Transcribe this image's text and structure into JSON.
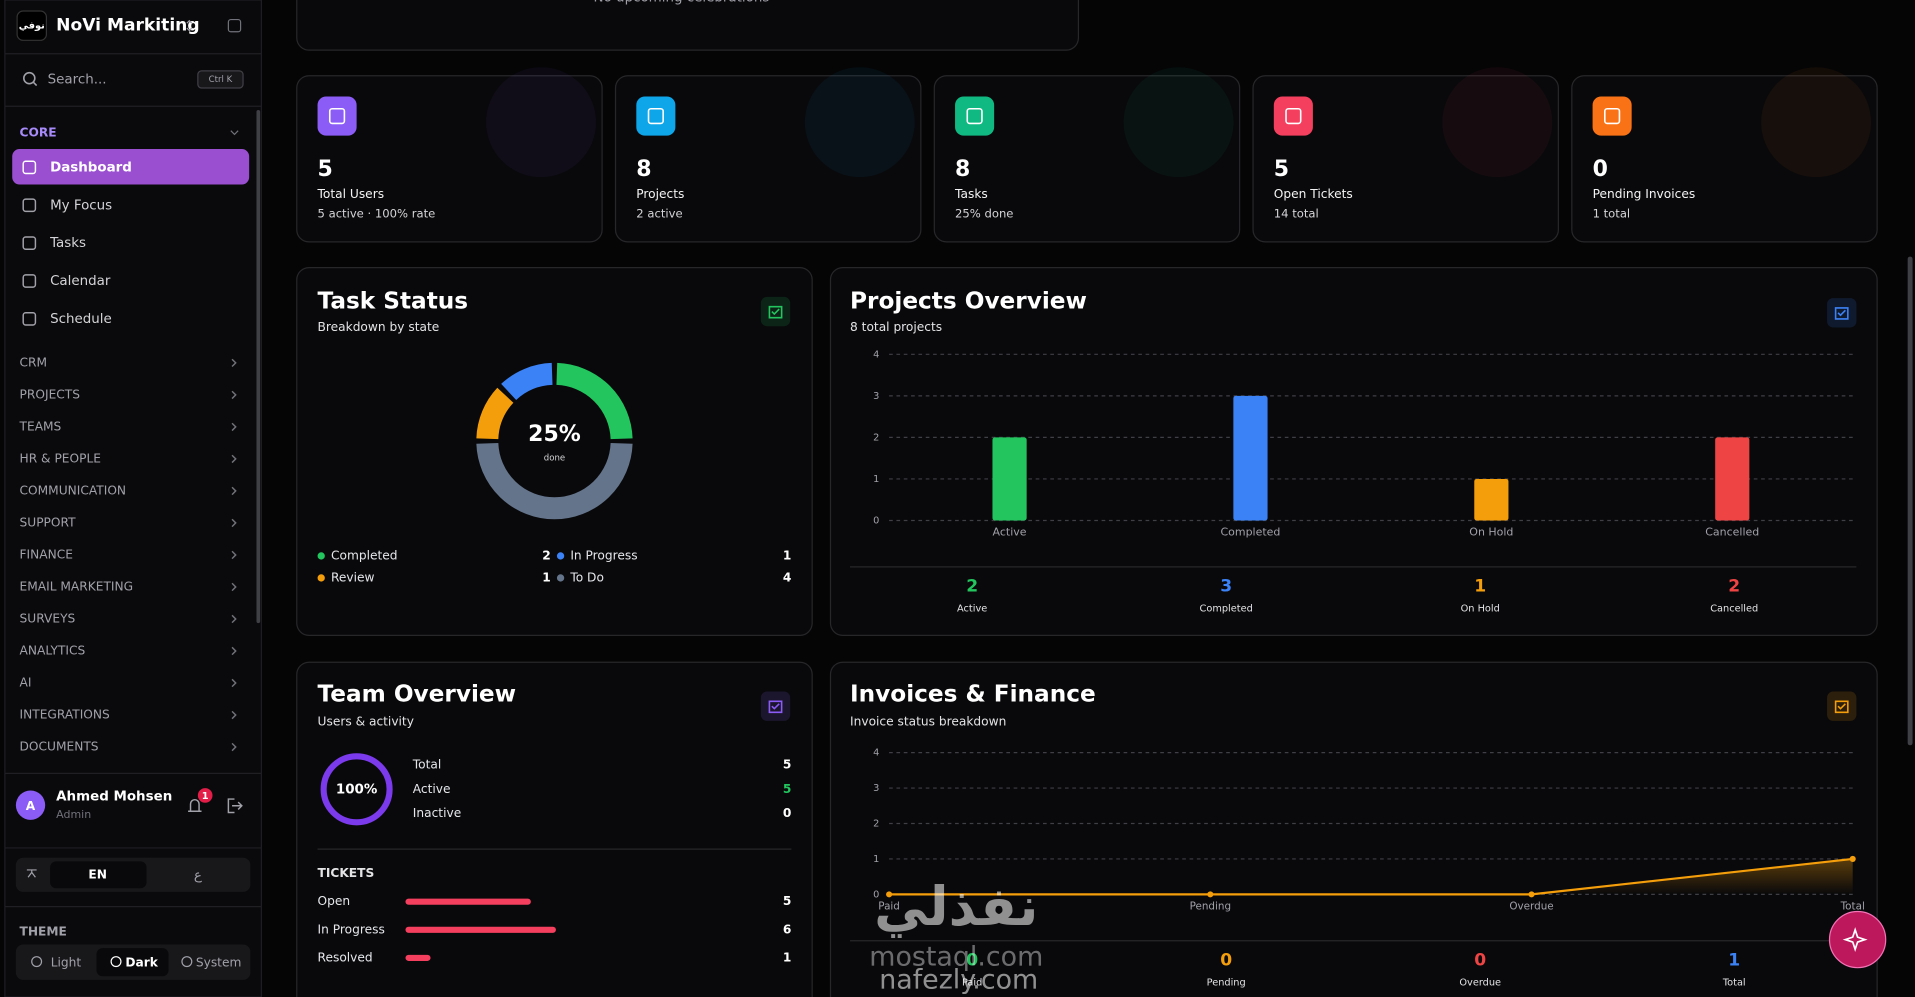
{
  "sidebar": {
    "logo": "نوفي",
    "brand": "NoVi Markiting",
    "search": {
      "placeholder": "Search...",
      "shortcut": "Ctrl K"
    },
    "section": "CORE",
    "nav": [
      "Dashboard",
      "My Focus",
      "Tasks",
      "Calendar",
      "Schedule"
    ],
    "groups": [
      "CRM",
      "PROJECTS",
      "TEAMS",
      "HR & PEOPLE",
      "COMMUNICATION",
      "SUPPORT",
      "FINANCE",
      "EMAIL MARKETING",
      "SURVEYS",
      "ANALYTICS",
      "AI",
      "INTEGRATIONS",
      "DOCUMENTS"
    ],
    "user": {
      "initial": "A",
      "name": "Ahmed Mohsen",
      "role": "Admin",
      "notifications": 1
    },
    "language": {
      "options": [
        "EN",
        "ع"
      ]
    },
    "theme": {
      "label": "THEME",
      "options": [
        "Light",
        "Dark",
        "System"
      ]
    }
  },
  "celebrations": "No upcoming celebrations",
  "stats": [
    {
      "value": 5,
      "label": "Total Users",
      "detail": "5 active · 100% rate",
      "color": "#8b5cf6"
    },
    {
      "value": 8,
      "label": "Projects",
      "detail": "2 active",
      "color": "#0ea5e9"
    },
    {
      "value": 8,
      "label": "Tasks",
      "detail": "25% done",
      "color": "#10b981"
    },
    {
      "value": 5,
      "label": "Open Tickets",
      "detail": "14 total",
      "color": "#f43f5e"
    },
    {
      "value": 0,
      "label": "Pending Invoices",
      "detail": "1 total",
      "color": "#f97316"
    }
  ],
  "task_status": {
    "type": "donut",
    "title": "Task Status",
    "subtitle": "Breakdown by state",
    "center_label": "25%",
    "center_caption": "done",
    "series": [
      {
        "name": "Completed",
        "value": 2,
        "color": "#22c55e"
      },
      {
        "name": "In Progress",
        "value": 1,
        "color": "#3b82f6"
      },
      {
        "name": "Review",
        "value": 1,
        "color": "#f59e0b"
      },
      {
        "name": "To Do",
        "value": 4,
        "color": "#64748b"
      }
    ]
  },
  "projects_overview": {
    "type": "bar",
    "title": "Projects Overview",
    "subtitle": "8 total projects",
    "categories": [
      "Active",
      "Completed",
      "On Hold",
      "Cancelled"
    ],
    "values": [
      2,
      3,
      1,
      2
    ],
    "colors": [
      "#22c55e",
      "#3b82f6",
      "#f59e0b",
      "#ef4444"
    ],
    "ylim": [
      0,
      4
    ],
    "yticks": [
      0,
      1,
      2,
      3,
      4
    ],
    "grid": true
  },
  "team_overview": {
    "title": "Team Overview",
    "subtitle": "Users & activity",
    "ring_label": "100%",
    "rows": [
      {
        "name": "Total",
        "value": 5
      },
      {
        "name": "Active",
        "value": 5,
        "color": "#22c55e"
      },
      {
        "name": "Inactive",
        "value": 0
      }
    ],
    "tickets": {
      "type": "hbar",
      "title": "TICKETS",
      "categories": [
        "Open",
        "In Progress",
        "Resolved"
      ],
      "values": [
        5,
        6,
        1
      ],
      "color": "#f43f5e",
      "xlim": [
        0,
        15
      ]
    }
  },
  "invoices": {
    "type": "line",
    "title": "Invoices & Finance",
    "subtitle": "Invoice status breakdown",
    "categories": [
      "Paid",
      "Pending",
      "Overdue",
      "Total"
    ],
    "values": [
      0,
      0,
      0,
      1
    ],
    "color": "#f59e0b",
    "summary_colors": [
      "#22c55e",
      "#f59e0b",
      "#ef4444",
      "#3b82f6"
    ],
    "ylim": [
      0,
      4
    ],
    "yticks": [
      0,
      1,
      2,
      3,
      4
    ],
    "grid": true
  },
  "watermark": [
    "نفذلي",
    "mostaql.com",
    "nafezly.com"
  ]
}
